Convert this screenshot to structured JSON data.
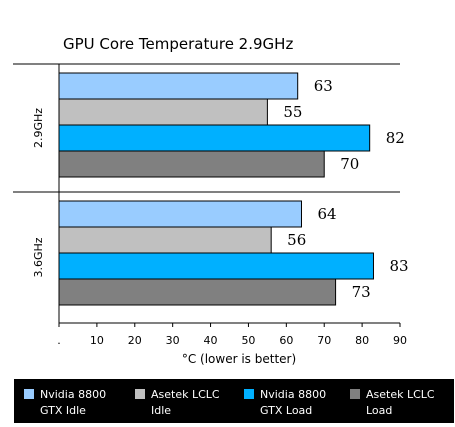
{
  "chart_data": {
    "type": "bar",
    "orientation": "horizontal",
    "title": "GPU Core Temperature 2.9GHz",
    "xlabel": "°C (lower is better)",
    "xlim": [
      0,
      90
    ],
    "x_ticks": [
      ".",
      "10",
      "20",
      "30",
      "40",
      "50",
      "60",
      "70",
      "80",
      "90"
    ],
    "grid": false,
    "legend_position": "bottom",
    "categories": [
      "2.9GHz",
      "3.6GHz"
    ],
    "series": [
      {
        "name": "Nvidia 8800 GTX Idle",
        "color": "#99ccff",
        "values": [
          63,
          64
        ]
      },
      {
        "name": "Asetek LCLC Idle",
        "color": "#c0c0c0",
        "values": [
          55,
          56
        ]
      },
      {
        "name": "Nvidia 8800 GTX Load",
        "color": "#00b0ff",
        "values": [
          82,
          83
        ]
      },
      {
        "name": "Asetek LCLC Load",
        "color": "#808080",
        "values": [
          70,
          73
        ]
      }
    ]
  },
  "legend": {
    "background": "#000000",
    "items": [
      {
        "line1": "Nvidia 8800",
        "line2": "GTX Idle"
      },
      {
        "line1": "Asetek LCLC",
        "line2": "Idle"
      },
      {
        "line1": "Nvidia 8800",
        "line2": "GTX Load"
      },
      {
        "line1": "Asetek LCLC",
        "line2": "Load"
      }
    ]
  }
}
